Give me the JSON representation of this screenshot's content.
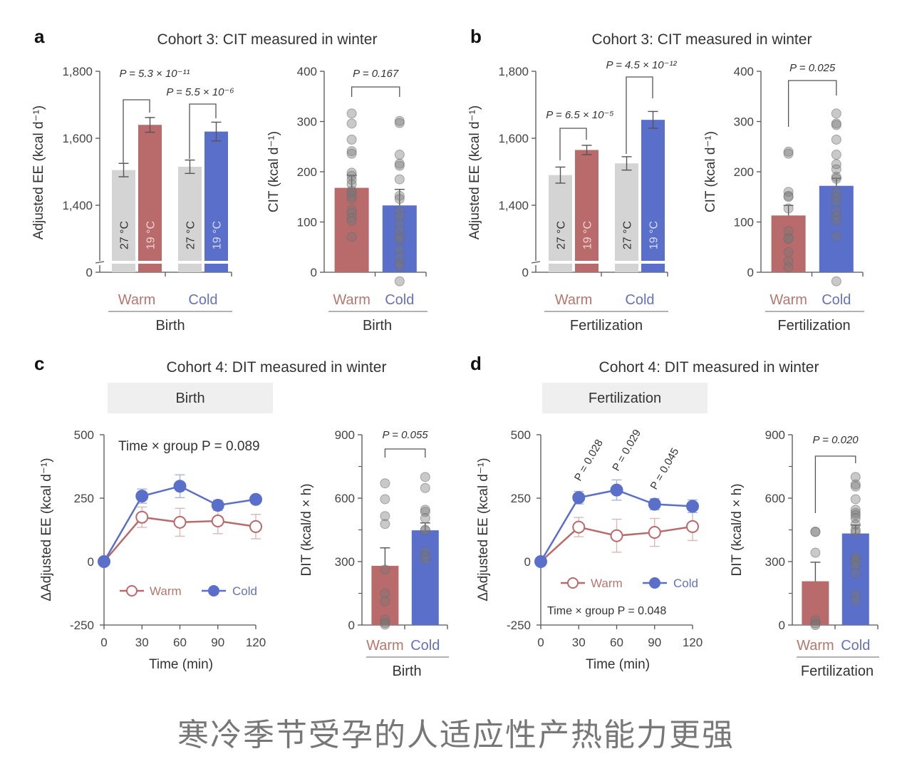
{
  "caption": "寒冷季节受孕的人适应性产热能力更强",
  "colors": {
    "warm": "#b96a6a",
    "cold": "#5a6fc9",
    "neutral_bar": "#d4d4d4",
    "warm_text": "#b4786e",
    "cold_text": "#6672b8",
    "axis": "#555555",
    "dot": "#9a9a9a",
    "strip_bg": "#efefef"
  },
  "chart_data": [
    {
      "id": "a-left",
      "panel_letter": "a",
      "panel_title": "Cohort 3: CIT measured in winter",
      "type": "bar",
      "ylabel": "Adjusted EE (kcal d⁻¹)",
      "yticks": [
        "0",
        "1,400",
        "1,600",
        "1,800"
      ],
      "ylim": [
        1250,
        1800
      ],
      "axis_break": true,
      "group_labels": [
        "Warm",
        "Cold"
      ],
      "xlabel": "Birth",
      "bar_labels": [
        "27 °C",
        "19 °C",
        "27 °C",
        "19 °C"
      ],
      "values": [
        1505,
        1640,
        1515,
        1620
      ],
      "errors": [
        20,
        22,
        20,
        28
      ],
      "pvalues": [
        "P = 5.3 × 10⁻¹¹",
        "P = 5.5 × 10⁻⁶"
      ]
    },
    {
      "id": "a-right",
      "type": "bar",
      "ylabel": "CIT (kcal d⁻¹)",
      "yticks": [
        "0",
        "100",
        "200",
        "300",
        "400"
      ],
      "ylim": [
        0,
        400
      ],
      "categories": [
        "Warm",
        "Cold"
      ],
      "xlabel": "Birth",
      "values": [
        168,
        133
      ],
      "errors": [
        25,
        32
      ],
      "pvalue": "P = 0.167",
      "points": [
        [
          316,
          296,
          264,
          241,
          236,
          198,
          192,
          184,
          175,
          162,
          158,
          152,
          146,
          124,
          118,
          108,
          102,
          70
        ],
        [
          301,
          297,
          234,
          216,
          212,
          185,
          152,
          146,
          122,
          112,
          97,
          83,
          70,
          66,
          45,
          30,
          17,
          12,
          -18
        ]
      ]
    },
    {
      "id": "b-left",
      "panel_letter": "b",
      "panel_title": "Cohort 3: CIT measured in winter",
      "type": "bar",
      "ylabel": "Adjusted EE (kcal d⁻¹)",
      "yticks": [
        "0",
        "1,400",
        "1,600",
        "1,800"
      ],
      "ylim": [
        1250,
        1800
      ],
      "axis_break": true,
      "group_labels": [
        "Warm",
        "Cold"
      ],
      "xlabel": "Fertilization",
      "bar_labels": [
        "27 °C",
        "19 °C",
        "27 °C",
        "19 °C"
      ],
      "values": [
        1490,
        1565,
        1525,
        1655
      ],
      "errors": [
        24,
        14,
        20,
        25
      ],
      "pvalues": [
        "P = 6.5 × 10⁻⁵",
        "P = 4.5 × 10⁻¹²"
      ]
    },
    {
      "id": "b-right",
      "type": "bar",
      "ylabel": "CIT (kcal d⁻¹)",
      "yticks": [
        "0",
        "100",
        "200",
        "300",
        "400"
      ],
      "ylim": [
        0,
        400
      ],
      "categories": [
        "Warm",
        "Cold"
      ],
      "xlabel": "Fertilization",
      "values": [
        113,
        172
      ],
      "errors": [
        20,
        15
      ],
      "pvalue": "P = 0.025",
      "points": [
        [
          240,
          236,
          160,
          152,
          150,
          127,
          82,
          68,
          66,
          40,
          22,
          10
        ],
        [
          316,
          296,
          293,
          264,
          234,
          215,
          205,
          190,
          186,
          160,
          150,
          140,
          122,
          111,
          102,
          72,
          -18
        ]
      ]
    },
    {
      "id": "c-left",
      "panel_letter": "c",
      "panel_title": "Cohort 4: DIT measured in winter",
      "strip_label": "Birth",
      "type": "line",
      "ylabel": "ΔAdjusted EE (kcal d⁻¹)",
      "xlabel": "Time (min)",
      "x": [
        0,
        30,
        60,
        90,
        120
      ],
      "xticks": [
        "0",
        "30",
        "60",
        "90",
        "120"
      ],
      "yticks": [
        "-250",
        "0",
        "250",
        "500"
      ],
      "ylim": [
        -250,
        500
      ],
      "series": [
        {
          "name": "Warm",
          "values": [
            0,
            175,
            155,
            160,
            138
          ],
          "errors": [
            0,
            40,
            55,
            50,
            48
          ],
          "marker": "open"
        },
        {
          "name": "Cold",
          "values": [
            0,
            258,
            297,
            222,
            245
          ],
          "errors": [
            0,
            28,
            45,
            20,
            15
          ],
          "marker": "filled"
        }
      ],
      "annotation": "Time × group P = 0.089",
      "legend": "bottom-center"
    },
    {
      "id": "c-right",
      "type": "bar",
      "ylabel": "DIT (kcal/d × h)",
      "yticks": [
        "0",
        "300",
        "600",
        "900"
      ],
      "ylim": [
        0,
        900
      ],
      "categories": [
        "Warm",
        "Cold"
      ],
      "xlabel": "Birth",
      "values": [
        280,
        448
      ],
      "errors": [
        85,
        35
      ],
      "pvalue": "P =  0.055",
      "points": [
        [
          670,
          595,
          515,
          478,
          262,
          150,
          112,
          25,
          10,
          2
        ],
        [
          700,
          648,
          545,
          535,
          505,
          450,
          448,
          348,
          325,
          310
        ]
      ]
    },
    {
      "id": "d-left",
      "panel_letter": "d",
      "panel_title": "Cohort 4: DIT measured in winter",
      "strip_label": "Fertilization",
      "type": "line",
      "ylabel": "ΔAdjusted EE (kcal d⁻¹)",
      "xlabel": "Time (min)",
      "x": [
        0,
        30,
        60,
        90,
        120
      ],
      "xticks": [
        "0",
        "30",
        "60",
        "90",
        "120"
      ],
      "yticks": [
        "-250",
        "0",
        "250",
        "500"
      ],
      "ylim": [
        -250,
        500
      ],
      "series": [
        {
          "name": "Warm",
          "values": [
            0,
            136,
            102,
            115,
            138
          ],
          "errors": [
            0,
            38,
            65,
            55,
            55
          ],
          "marker": "open"
        },
        {
          "name": "Cold",
          "values": [
            0,
            252,
            282,
            226,
            218
          ],
          "errors": [
            0,
            25,
            40,
            22,
            25
          ],
          "marker": "filled"
        }
      ],
      "point_pvalues": [
        {
          "x": 30,
          "label": "P = 0.028"
        },
        {
          "x": 60,
          "label": "P = 0.029"
        },
        {
          "x": 90,
          "label": "P = 0.045"
        }
      ],
      "annotation": "Time × group P = 0.048",
      "legend": "bottom-center"
    },
    {
      "id": "d-right",
      "type": "bar",
      "ylabel": "DIT (kcal/d × h)",
      "yticks": [
        "0",
        "300",
        "600",
        "900"
      ],
      "ylim": [
        0,
        900
      ],
      "categories": [
        "Warm",
        "Cold"
      ],
      "xlabel": "Fertilization",
      "values": [
        207,
        433
      ],
      "errors": [
        90,
        40
      ],
      "pvalue": "P = 0.020",
      "points": [
        [
          442,
          440,
          342,
          22,
          8,
          0
        ],
        [
          700,
          665,
          655,
          595,
          545,
          530,
          520,
          505,
          475,
          450,
          440,
          320,
          310,
          300,
          280,
          245,
          145,
          115
        ]
      ]
    }
  ]
}
